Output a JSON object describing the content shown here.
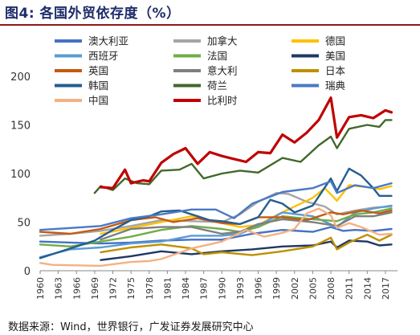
{
  "header": {
    "title": "图4:  各国外贸依存度（%）"
  },
  "footer": {
    "source": "数据来源：Wind，世界银行，广发证券发展研究中心"
  },
  "chart_data": {
    "type": "line",
    "ylim": [
      0,
      200
    ],
    "yticks": [
      0,
      50,
      100,
      150,
      200
    ],
    "xlim": [
      1960,
      2019
    ],
    "xticks": [
      1960,
      1963,
      1966,
      1969,
      1972,
      1975,
      1978,
      1981,
      1984,
      1987,
      1990,
      1993,
      1996,
      1999,
      2002,
      2005,
      2008,
      2011,
      2014,
      2017
    ],
    "grid": false,
    "legend_position": "top",
    "series": [
      {
        "name": "澳大利亚",
        "color": "#4472c4",
        "width": 2.4,
        "points": [
          [
            1960,
            30
          ],
          [
            1965,
            29
          ],
          [
            1970,
            28
          ],
          [
            1975,
            29
          ],
          [
            1980,
            31
          ],
          [
            1985,
            32
          ],
          [
            1990,
            32
          ],
          [
            1995,
            38
          ],
          [
            2000,
            42
          ],
          [
            2005,
            40
          ],
          [
            2008,
            45
          ],
          [
            2010,
            41
          ],
          [
            2012,
            42
          ],
          [
            2015,
            41
          ],
          [
            2018,
            43
          ]
        ]
      },
      {
        "name": "加拿大",
        "color": "#a5a5a5",
        "width": 2.4,
        "points": [
          [
            1960,
            36
          ],
          [
            1965,
            38
          ],
          [
            1970,
            41
          ],
          [
            1975,
            46
          ],
          [
            1980,
            52
          ],
          [
            1985,
            51
          ],
          [
            1990,
            50
          ],
          [
            1993,
            58
          ],
          [
            1996,
            71
          ],
          [
            1999,
            80
          ],
          [
            2001,
            79
          ],
          [
            2004,
            71
          ],
          [
            2007,
            66
          ],
          [
            2009,
            58
          ],
          [
            2012,
            62
          ],
          [
            2015,
            65
          ],
          [
            2018,
            66
          ]
        ]
      },
      {
        "name": "德国",
        "color": "#ffc000",
        "width": 2.4,
        "points": [
          [
            1970,
            38
          ],
          [
            1975,
            44
          ],
          [
            1980,
            50
          ],
          [
            1985,
            56
          ],
          [
            1990,
            49
          ],
          [
            1993,
            45
          ],
          [
            1996,
            47
          ],
          [
            1999,
            57
          ],
          [
            2002,
            66
          ],
          [
            2005,
            75
          ],
          [
            2007,
            85
          ],
          [
            2009,
            72
          ],
          [
            2011,
            88
          ],
          [
            2014,
            86
          ],
          [
            2016,
            84
          ],
          [
            2018,
            87
          ]
        ]
      },
      {
        "name": "西班牙",
        "color": "#5b9bd5",
        "width": 2.4,
        "points": [
          [
            1960,
            14
          ],
          [
            1965,
            22
          ],
          [
            1970,
            24
          ],
          [
            1975,
            28
          ],
          [
            1980,
            30
          ],
          [
            1985,
            36
          ],
          [
            1990,
            36
          ],
          [
            1993,
            38
          ],
          [
            1996,
            46
          ],
          [
            2000,
            60
          ],
          [
            2005,
            56
          ],
          [
            2009,
            45
          ],
          [
            2012,
            60
          ],
          [
            2015,
            64
          ],
          [
            2018,
            67
          ]
        ]
      },
      {
        "name": "法国",
        "color": "#70ad47",
        "width": 2.4,
        "points": [
          [
            1960,
            27
          ],
          [
            1965,
            25
          ],
          [
            1970,
            30
          ],
          [
            1975,
            35
          ],
          [
            1980,
            42
          ],
          [
            1985,
            46
          ],
          [
            1990,
            43
          ],
          [
            1993,
            40
          ],
          [
            1996,
            45
          ],
          [
            2000,
            56
          ],
          [
            2005,
            53
          ],
          [
            2009,
            51
          ],
          [
            2012,
            58
          ],
          [
            2015,
            60
          ],
          [
            2018,
            64
          ]
        ]
      },
      {
        "name": "美国",
        "color": "#1f3864",
        "width": 2.4,
        "points": [
          [
            1970,
            11
          ],
          [
            1975,
            15
          ],
          [
            1980,
            20
          ],
          [
            1985,
            17
          ],
          [
            1990,
            20
          ],
          [
            1995,
            22
          ],
          [
            2000,
            25
          ],
          [
            2005,
            26
          ],
          [
            2008,
            30
          ],
          [
            2009,
            24
          ],
          [
            2011,
            31
          ],
          [
            2014,
            30
          ],
          [
            2016,
            26
          ],
          [
            2018,
            27
          ]
        ]
      },
      {
        "name": "英国",
        "color": "#c55a11",
        "width": 2.4,
        "points": [
          [
            1960,
            40
          ],
          [
            1965,
            38
          ],
          [
            1970,
            43
          ],
          [
            1975,
            52
          ],
          [
            1979,
            55
          ],
          [
            1982,
            50
          ],
          [
            1986,
            54
          ],
          [
            1990,
            49
          ],
          [
            1993,
            48
          ],
          [
            1996,
            55
          ],
          [
            2000,
            55
          ],
          [
            2004,
            52
          ],
          [
            2008,
            60
          ],
          [
            2010,
            58
          ],
          [
            2013,
            62
          ],
          [
            2016,
            59
          ],
          [
            2018,
            62
          ]
        ]
      },
      {
        "name": "意大利",
        "color": "#7f7f7f",
        "width": 2.4,
        "points": [
          [
            1970,
            32
          ],
          [
            1975,
            43
          ],
          [
            1980,
            45
          ],
          [
            1985,
            45
          ],
          [
            1990,
            38
          ],
          [
            1993,
            40
          ],
          [
            1996,
            48
          ],
          [
            2000,
            53
          ],
          [
            2005,
            50
          ],
          [
            2009,
            46
          ],
          [
            2012,
            56
          ],
          [
            2015,
            56
          ],
          [
            2018,
            60
          ]
        ]
      },
      {
        "name": "日本",
        "color": "#bf9000",
        "width": 2.4,
        "points": [
          [
            1970,
            19
          ],
          [
            1975,
            24
          ],
          [
            1980,
            27
          ],
          [
            1985,
            23
          ],
          [
            1987,
            17
          ],
          [
            1990,
            19
          ],
          [
            1995,
            16
          ],
          [
            2000,
            20
          ],
          [
            2005,
            25
          ],
          [
            2008,
            34
          ],
          [
            2009,
            22
          ],
          [
            2011,
            29
          ],
          [
            2014,
            37
          ],
          [
            2016,
            31
          ],
          [
            2018,
            37
          ]
        ]
      },
      {
        "name": "韩国",
        "color": "#255e91",
        "width": 2.4,
        "points": [
          [
            1960,
            13
          ],
          [
            1963,
            19
          ],
          [
            1966,
            25
          ],
          [
            1969,
            31
          ],
          [
            1972,
            42
          ],
          [
            1975,
            52
          ],
          [
            1978,
            56
          ],
          [
            1980,
            61
          ],
          [
            1983,
            62
          ],
          [
            1986,
            56
          ],
          [
            1988,
            52
          ],
          [
            1990,
            51
          ],
          [
            1993,
            48
          ],
          [
            1996,
            55
          ],
          [
            1998,
            73
          ],
          [
            2000,
            69
          ],
          [
            2002,
            60
          ],
          [
            2005,
            67
          ],
          [
            2008,
            95
          ],
          [
            2009,
            82
          ],
          [
            2011,
            105
          ],
          [
            2013,
            98
          ],
          [
            2015,
            85
          ],
          [
            2016,
            77
          ],
          [
            2018,
            77
          ]
        ]
      },
      {
        "name": "荷兰",
        "color": "#43682b",
        "width": 2.4,
        "points": [
          [
            1969,
            80
          ],
          [
            1970,
            87
          ],
          [
            1972,
            83
          ],
          [
            1974,
            95
          ],
          [
            1976,
            90
          ],
          [
            1978,
            89
          ],
          [
            1980,
            103
          ],
          [
            1983,
            104
          ],
          [
            1985,
            110
          ],
          [
            1987,
            95
          ],
          [
            1990,
            100
          ],
          [
            1993,
            103
          ],
          [
            1996,
            101
          ],
          [
            2000,
            116
          ],
          [
            2003,
            112
          ],
          [
            2006,
            129
          ],
          [
            2008,
            138
          ],
          [
            2009,
            126
          ],
          [
            2011,
            146
          ],
          [
            2014,
            150
          ],
          [
            2016,
            148
          ],
          [
            2017,
            155
          ],
          [
            2018,
            155
          ]
        ]
      },
      {
        "name": "瑞典",
        "color": "#4a79c4",
        "width": 2.4,
        "points": [
          [
            1960,
            42
          ],
          [
            1965,
            44
          ],
          [
            1970,
            46
          ],
          [
            1975,
            54
          ],
          [
            1980,
            58
          ],
          [
            1985,
            63
          ],
          [
            1989,
            63
          ],
          [
            1992,
            54
          ],
          [
            1995,
            69
          ],
          [
            2000,
            81
          ],
          [
            2005,
            85
          ],
          [
            2008,
            92
          ],
          [
            2009,
            80
          ],
          [
            2012,
            88
          ],
          [
            2015,
            85
          ],
          [
            2018,
            90
          ]
        ]
      },
      {
        "name": "中国",
        "color": "#f4b183",
        "width": 2.4,
        "points": [
          [
            1960,
            8
          ],
          [
            1962,
            6
          ],
          [
            1970,
            5
          ],
          [
            1975,
            9
          ],
          [
            1978,
            10
          ],
          [
            1980,
            12
          ],
          [
            1985,
            23
          ],
          [
            1990,
            30
          ],
          [
            1994,
            42
          ],
          [
            1997,
            35
          ],
          [
            2000,
            39
          ],
          [
            2002,
            43
          ],
          [
            2004,
            59
          ],
          [
            2006,
            64
          ],
          [
            2008,
            57
          ],
          [
            2009,
            44
          ],
          [
            2011,
            49
          ],
          [
            2013,
            45
          ],
          [
            2016,
            37
          ],
          [
            2018,
            38
          ]
        ]
      },
      {
        "name": "比利时",
        "color": "#c00000",
        "width": 3.2,
        "points": [
          [
            1970,
            86
          ],
          [
            1972,
            85
          ],
          [
            1974,
            104
          ],
          [
            1975,
            90
          ],
          [
            1977,
            93
          ],
          [
            1978,
            92
          ],
          [
            1980,
            111
          ],
          [
            1982,
            120
          ],
          [
            1984,
            126
          ],
          [
            1986,
            110
          ],
          [
            1988,
            122
          ],
          [
            1990,
            118
          ],
          [
            1992,
            115
          ],
          [
            1994,
            112
          ],
          [
            1996,
            122
          ],
          [
            1998,
            121
          ],
          [
            2000,
            140
          ],
          [
            2002,
            132
          ],
          [
            2004,
            142
          ],
          [
            2006,
            155
          ],
          [
            2008,
            178
          ],
          [
            2009,
            137
          ],
          [
            2011,
            158
          ],
          [
            2013,
            160
          ],
          [
            2015,
            157
          ],
          [
            2017,
            165
          ],
          [
            2018,
            163
          ]
        ]
      }
    ]
  }
}
